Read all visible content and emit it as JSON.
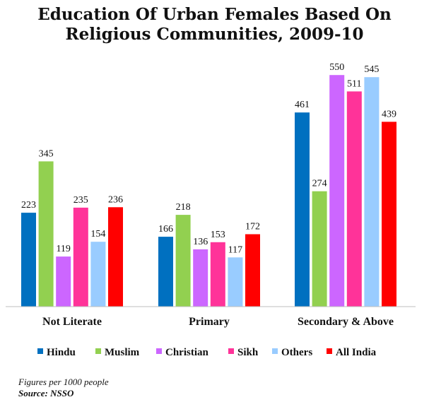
{
  "chart_data": {
    "type": "bar",
    "title_line1": "Education Of Urban Females Based On",
    "title_line2": "Religious Communities, 2009-10",
    "categories": [
      "Not Literate",
      "Primary",
      "Secondary & Above"
    ],
    "series": [
      {
        "name": "Hindu",
        "color": "#0070C0",
        "values": [
          223,
          166,
          461
        ]
      },
      {
        "name": "Muslim",
        "color": "#92D050",
        "values": [
          345,
          218,
          274
        ]
      },
      {
        "name": "Christian",
        "color": "#CC66FF",
        "values": [
          119,
          136,
          550
        ]
      },
      {
        "name": "Sikh",
        "color": "#FF3399",
        "values": [
          235,
          153,
          511
        ]
      },
      {
        "name": "Others",
        "color": "#99CCFF",
        "values": [
          154,
          117,
          545
        ]
      },
      {
        "name": "All India",
        "color": "#FF0000",
        "values": [
          236,
          172,
          439
        ]
      }
    ],
    "ylim": [
      0,
      560
    ],
    "grid": false,
    "legend_position": "bottom",
    "notes": [
      "Figures per 1000 people",
      "Source: NSSO"
    ]
  }
}
